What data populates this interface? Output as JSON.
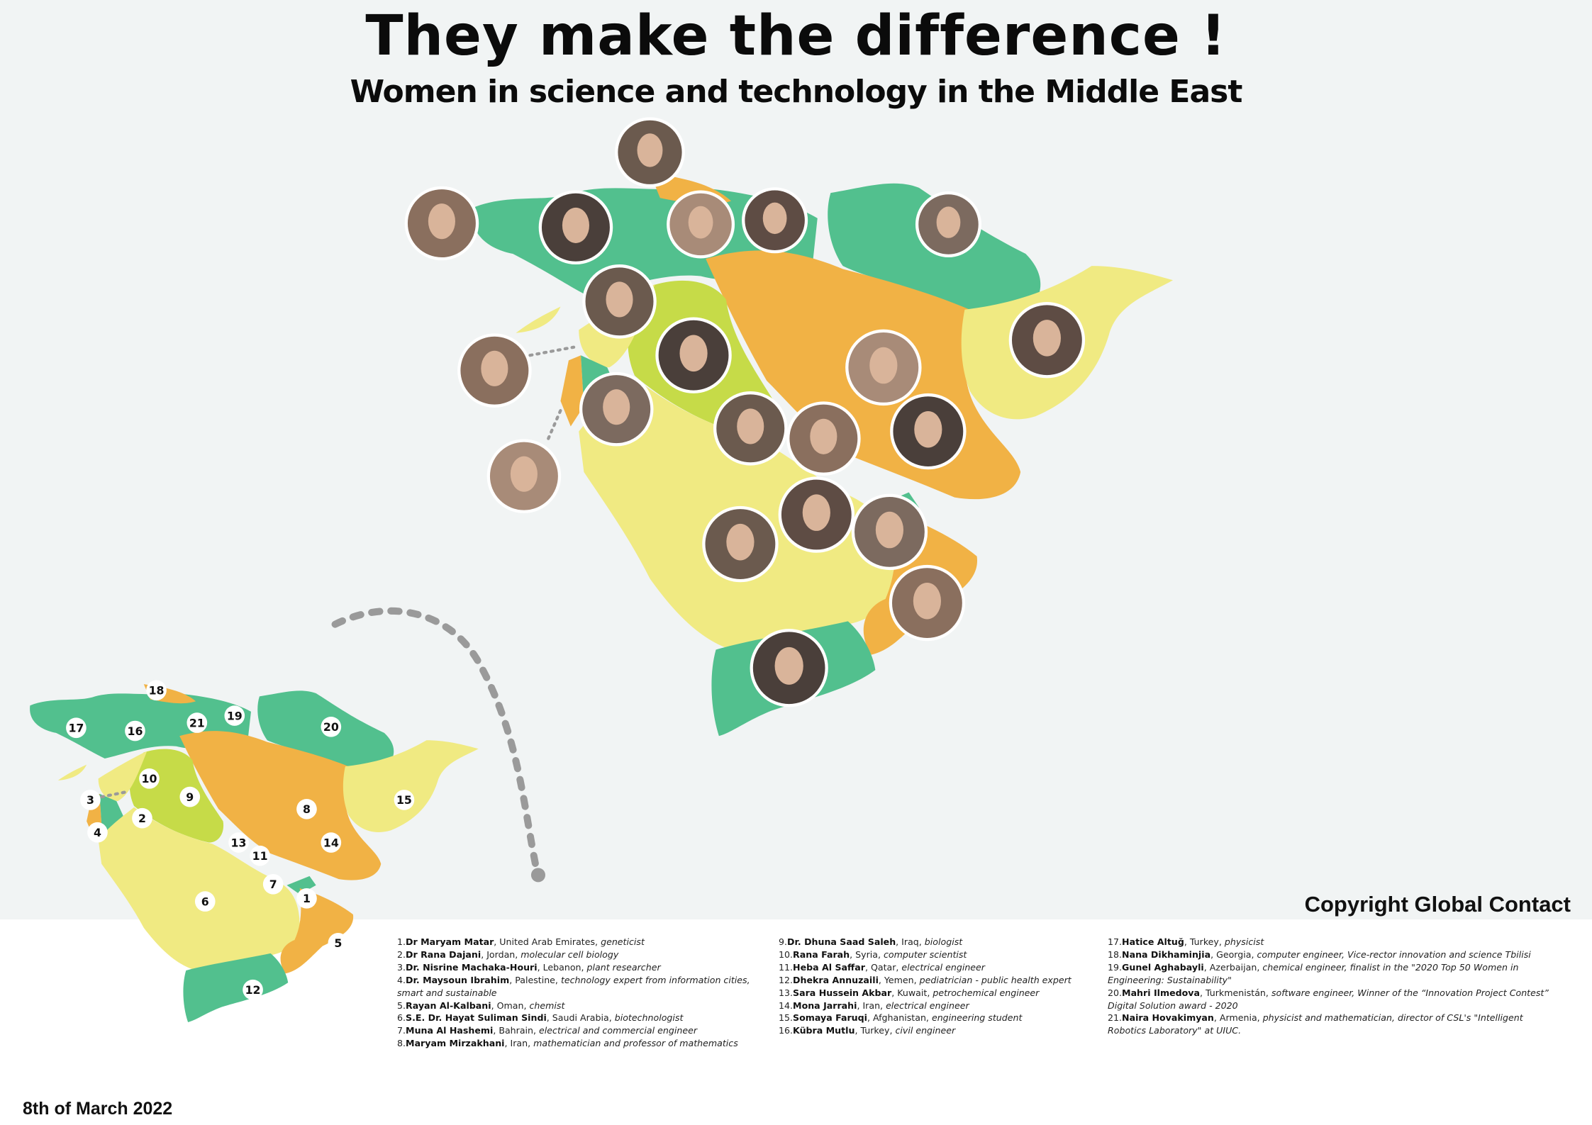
{
  "header": {
    "title": "They make the difference !",
    "subtitle": "Women in science and technology in the Middle East"
  },
  "footer": {
    "copyright": "Copyright Global Contact",
    "date": "8th of March 2022"
  },
  "colors": {
    "background": "#f1f4f4",
    "green": "#52c08e",
    "orange": "#f1b245",
    "yellow": "#f0ea82",
    "lime": "#c6db48",
    "dotted_line": "#9a9a9a"
  },
  "small_map_markers": [
    "1",
    "2",
    "3",
    "4",
    "5",
    "6",
    "7",
    "8",
    "9",
    "10",
    "11",
    "12",
    "13",
    "14",
    "15",
    "16",
    "17",
    "18",
    "19",
    "20",
    "21"
  ],
  "legend": [
    {
      "num": "1.",
      "name": "Dr Maryam Matar",
      "country": ", United Arab Emirates, ",
      "role": "geneticist"
    },
    {
      "num": "2.",
      "name": "Dr Rana Dajani",
      "country": ", Jordan, ",
      "role": "molecular cell biology"
    },
    {
      "num": "3.",
      "name": "Dr. Nisrine Machaka-Houri",
      "country": ", Lebanon, ",
      "role": "plant researcher"
    },
    {
      "num": "4.",
      "name": "Dr. Maysoun Ibrahim",
      "country": ", Palestine, ",
      "role": "technology expert from information cities, smart and sustainable"
    },
    {
      "num": "5.",
      "name": "Rayan Al-Kalbani",
      "country": ", Oman, ",
      "role": "chemist"
    },
    {
      "num": "6.",
      "name": "S.E. Dr. Hayat Suliman Sindi",
      "country": ", Saudi Arabia, ",
      "role": "biotechnologist"
    },
    {
      "num": "7.",
      "name": "Muna Al Hashemi",
      "country": ", Bahrain, ",
      "role": "electrical and commercial engineer"
    },
    {
      "num": "8.",
      "name": "Maryam Mirzakhani",
      "country": ", Iran, ",
      "role": "mathematician and professor of mathematics"
    },
    {
      "num": "9.",
      "name": "Dr. Dhuna Saad Saleh",
      "country": ", Iraq, ",
      "role": "biologist"
    },
    {
      "num": "10.",
      "name": "Rana Farah",
      "country": ", Syria, ",
      "role": "computer scientist"
    },
    {
      "num": "11.",
      "name": "Heba Al Saffar",
      "country": ", Qatar, ",
      "role": "electrical engineer"
    },
    {
      "num": "12.",
      "name": "Dhekra Annuzaili",
      "country": ", Yemen, ",
      "role": "pediatrician - public health expert"
    },
    {
      "num": "13.",
      "name": "Sara Hussein Akbar",
      "country": ", Kuwait, ",
      "role": "petrochemical engineer"
    },
    {
      "num": "14.",
      "name": "Mona Jarrahi",
      "country": ", Iran, ",
      "role": "electrical engineer"
    },
    {
      "num": "15.",
      "name": "Somaya Faruqi",
      "country": ", Afghanistan, ",
      "role": "engineering student"
    },
    {
      "num": "16.",
      "name": "Kübra Mutlu",
      "country": ", Turkey, ",
      "role": "civil engineer"
    },
    {
      "num": "17.",
      "name": "Hatice Altuğ",
      "country": ", Turkey, ",
      "role": "physicist"
    },
    {
      "num": "18.",
      "name": "Nana Dikhaminjia",
      "country": ", Georgia, ",
      "role": "computer engineer, Vice-rector innovation and science Tbilisi"
    },
    {
      "num": "19.",
      "name": "Gunel Aghabayli",
      "country": ", Azerbaijan, ",
      "role": "chemical engineer, finalist in the \"2020 Top 50 Women in Engineering: Sustainability\""
    },
    {
      "num": "20.",
      "name": "Mahri Ilmedova",
      "country": ", Turkmenistán, ",
      "role": "software engineer, Winner of the “Innovation Project Contest” Digital Solution award - 2020"
    },
    {
      "num": "21.",
      "name": "Naira Hovakimyan",
      "country": ", Armenia, ",
      "role": "physicist and mathematician, director of CSL's \"Intelligent Robotics Laboratory\" at UIUC."
    }
  ]
}
